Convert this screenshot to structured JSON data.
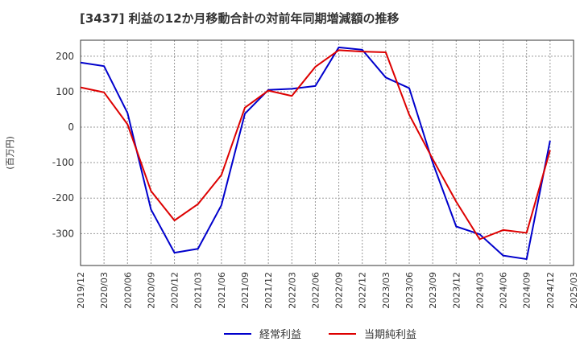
{
  "chart_data": {
    "type": "line",
    "title": "[3437]  利益の12か月移動合計の対前年同期増減額の推移",
    "ylabel": "(百万円)",
    "xlabel": "",
    "ylim": [
      -390,
      245
    ],
    "yticks": [
      200,
      100,
      0,
      -100,
      -200,
      -300
    ],
    "ytick_labels": [
      "200",
      "100",
      "0",
      "-100",
      "-200",
      "-300"
    ],
    "categories": [
      "2019/12",
      "2020/03",
      "2020/06",
      "2020/09",
      "2020/12",
      "2021/03",
      "2021/06",
      "2021/09",
      "2021/12",
      "2022/03",
      "2022/06",
      "2022/09",
      "2022/12",
      "2023/03",
      "2023/06",
      "2023/09",
      "2023/12",
      "2024/03",
      "2024/06",
      "2024/09",
      "2024/12",
      "2025/03"
    ],
    "grid": true,
    "legend_position": "bottom",
    "series": [
      {
        "name": "経常利益",
        "color": "#0000cc",
        "values": [
          182,
          172,
          40,
          -232,
          -354,
          -343,
          -220,
          38,
          105,
          108,
          116,
          225,
          218,
          140,
          110,
          -100,
          -280,
          -302,
          -362,
          -372,
          -38,
          null
        ]
      },
      {
        "name": "当期純利益",
        "color": "#dd0000",
        "values": [
          112,
          98,
          8,
          -180,
          -263,
          -217,
          -135,
          55,
          103,
          88,
          170,
          217,
          213,
          211,
          35,
          -90,
          -210,
          -316,
          -290,
          -298,
          -65,
          null
        ]
      }
    ]
  }
}
